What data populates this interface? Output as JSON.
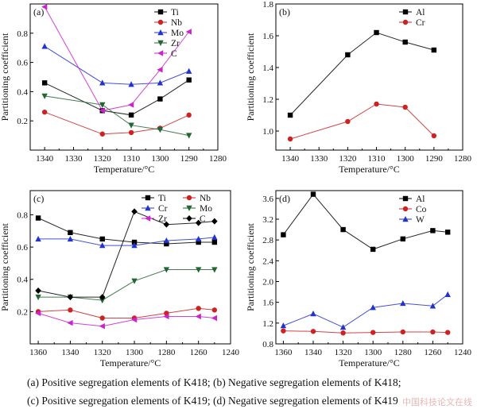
{
  "captions": {
    "line1": "(a) Positive segregation elements of  K418; (b) Negative segregation elements of K418;",
    "line2": "(c) Positive segregation elements of K419; (d) Negative segregation elements of K419"
  },
  "watermark": "中国科技论文在线",
  "chart_data": [
    {
      "type": "line",
      "panel_label": "(a)",
      "xlabel": "Temperature/°C",
      "ylabel": "Partitioning coefficient",
      "xlim": [
        1345,
        1280
      ],
      "ylim": [
        0,
        1.0
      ],
      "xticks": [
        1340,
        1330,
        1320,
        1310,
        1300,
        1290,
        1280
      ],
      "yticks": [
        0.2,
        0.4,
        0.6,
        0.8
      ],
      "ytick_labels": [
        "0.2",
        "0.4",
        "0.6",
        "0.8"
      ],
      "legend_position": "top-right",
      "series": [
        {
          "name": "Ti",
          "color": "#000000",
          "marker": "square",
          "x": [
            1340,
            1320,
            1310,
            1300,
            1290
          ],
          "y": [
            0.46,
            0.27,
            0.24,
            0.35,
            0.48
          ]
        },
        {
          "name": "Nb",
          "color": "#cc2222",
          "marker": "circle",
          "x": [
            1340,
            1320,
            1310,
            1300,
            1290
          ],
          "y": [
            0.26,
            0.11,
            0.12,
            0.15,
            0.24
          ]
        },
        {
          "name": "Mo",
          "color": "#2233cc",
          "marker": "triangle-up",
          "x": [
            1340,
            1320,
            1310,
            1300,
            1290
          ],
          "y": [
            0.71,
            0.46,
            0.45,
            0.46,
            0.54
          ]
        },
        {
          "name": "Zr",
          "color": "#226633",
          "marker": "triangle-down",
          "x": [
            1340,
            1320,
            1310,
            1300,
            1290
          ],
          "y": [
            0.37,
            0.31,
            0.17,
            0.14,
            0.1
          ]
        },
        {
          "name": "C",
          "color": "#cc22cc",
          "marker": "triangle-left",
          "x": [
            1340,
            1320,
            1310,
            1300,
            1290
          ],
          "y": [
            0.98,
            0.27,
            0.31,
            0.55,
            0.81
          ]
        }
      ]
    },
    {
      "type": "line",
      "panel_label": "(b)",
      "xlabel": "Temperature/°C",
      "ylabel": "Partitioning coefficient",
      "xlim": [
        1345,
        1280
      ],
      "ylim": [
        0.88,
        1.8
      ],
      "xticks": [
        1340,
        1330,
        1320,
        1310,
        1300,
        1290,
        1280
      ],
      "yticks": [
        1.0,
        1.2,
        1.4,
        1.6,
        1.8
      ],
      "ytick_labels": [
        "1.0",
        "1.2",
        "1.4",
        "1.6",
        "1.8"
      ],
      "legend_position": "top-right",
      "series": [
        {
          "name": "Al",
          "color": "#000000",
          "marker": "square",
          "x": [
            1340,
            1320,
            1310,
            1300,
            1290
          ],
          "y": [
            1.1,
            1.48,
            1.62,
            1.56,
            1.51
          ]
        },
        {
          "name": "Cr",
          "color": "#cc2222",
          "marker": "circle",
          "x": [
            1340,
            1320,
            1310,
            1300,
            1290
          ],
          "y": [
            0.95,
            1.06,
            1.17,
            1.15,
            0.97
          ]
        }
      ]
    },
    {
      "type": "line",
      "panel_label": "(c)",
      "xlabel": "Temperature/°C",
      "ylabel": "Partitioning coefficient",
      "xlim": [
        1365,
        1240
      ],
      "ylim": [
        0,
        0.95
      ],
      "xticks": [
        1360,
        1340,
        1320,
        1300,
        1280,
        1260,
        1240
      ],
      "yticks": [
        0.2,
        0.4,
        0.6,
        0.8
      ],
      "ytick_labels": [
        "0.2",
        "0.4",
        "0.6",
        "0.8"
      ],
      "legend_position": "top-right",
      "series": [
        {
          "name": "Ti",
          "color": "#000000",
          "marker": "square",
          "x": [
            1360,
            1340,
            1320,
            1300,
            1280,
            1260,
            1250
          ],
          "y": [
            0.78,
            0.69,
            0.65,
            0.63,
            0.62,
            0.63,
            0.63
          ]
        },
        {
          "name": "Nb",
          "color": "#cc2222",
          "marker": "circle",
          "x": [
            1360,
            1340,
            1320,
            1300,
            1280,
            1260,
            1250
          ],
          "y": [
            0.2,
            0.21,
            0.16,
            0.16,
            0.19,
            0.22,
            0.21
          ]
        },
        {
          "name": "Cr",
          "color": "#2233cc",
          "marker": "triangle-up",
          "x": [
            1360,
            1340,
            1320,
            1300,
            1280,
            1260,
            1250
          ],
          "y": [
            0.65,
            0.65,
            0.61,
            0.61,
            0.64,
            0.65,
            0.66
          ]
        },
        {
          "name": "Mo",
          "color": "#226633",
          "marker": "triangle-down",
          "x": [
            1360,
            1340,
            1320,
            1300,
            1280,
            1260,
            1250
          ],
          "y": [
            0.29,
            0.29,
            0.27,
            0.39,
            0.46,
            0.46,
            0.46
          ]
        },
        {
          "name": "Zr",
          "color": "#cc22cc",
          "marker": "triangle-left",
          "x": [
            1360,
            1340,
            1320,
            1300,
            1280,
            1260,
            1250
          ],
          "y": [
            0.19,
            0.13,
            0.11,
            0.15,
            0.17,
            0.17,
            0.16
          ]
        },
        {
          "name": "C",
          "color": "#000000",
          "marker": "diamond",
          "x": [
            1360,
            1340,
            1320,
            1300,
            1280,
            1260,
            1250
          ],
          "y": [
            0.33,
            0.29,
            0.29,
            0.82,
            0.74,
            0.75,
            0.76
          ]
        }
      ]
    },
    {
      "type": "line",
      "panel_label": "(d)",
      "xlabel": "Temperature/°C",
      "ylabel": "Partitioning coefficient",
      "xlim": [
        1365,
        1240
      ],
      "ylim": [
        0.8,
        3.75
      ],
      "xticks": [
        1360,
        1340,
        1320,
        1300,
        1280,
        1260,
        1240
      ],
      "yticks": [
        0.8,
        1.2,
        1.6,
        2.0,
        2.4,
        2.8,
        3.2,
        3.6
      ],
      "ytick_labels": [
        "0.8",
        "1.2",
        "1.6",
        "2.0",
        "2.4",
        "2.8",
        "3.2",
        "3.6"
      ],
      "legend_position": "top-right",
      "series": [
        {
          "name": "Al",
          "color": "#000000",
          "marker": "square",
          "x": [
            1360,
            1340,
            1320,
            1300,
            1280,
            1260,
            1250
          ],
          "y": [
            2.9,
            3.68,
            3.0,
            2.62,
            2.82,
            2.98,
            2.95
          ]
        },
        {
          "name": "Co",
          "color": "#cc2222",
          "marker": "circle",
          "x": [
            1360,
            1340,
            1320,
            1300,
            1280,
            1260,
            1250
          ],
          "y": [
            1.05,
            1.04,
            1.01,
            1.02,
            1.03,
            1.03,
            1.02
          ]
        },
        {
          "name": "W",
          "color": "#2233cc",
          "marker": "triangle-up",
          "x": [
            1360,
            1340,
            1320,
            1300,
            1280,
            1260,
            1250
          ],
          "y": [
            1.15,
            1.38,
            1.12,
            1.5,
            1.58,
            1.53,
            1.75
          ]
        }
      ]
    }
  ]
}
